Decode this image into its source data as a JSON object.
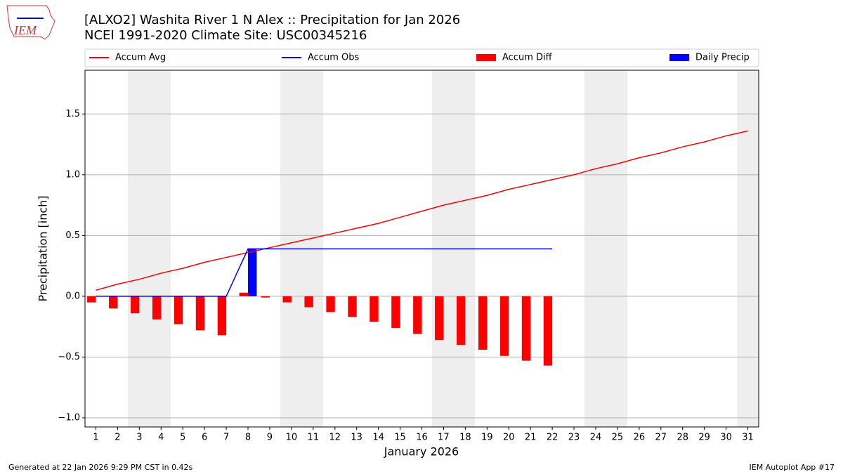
{
  "logo_text": "IEM",
  "footer": {
    "left": "Generated at 22 Jan 2026 9:29 PM CST in 0.42s",
    "right": "IEM Autoplot App #17"
  },
  "chart_data": {
    "type": "line",
    "title": "[ALXO2] Washita River 1 N Alex :: Precipitation for Jan 2026",
    "subtitle": "NCEI 1991-2020 Climate Site: USC00345216",
    "xlabel": "January 2026",
    "ylabel": "Precipitation [inch]",
    "x": [
      1,
      2,
      3,
      4,
      5,
      6,
      7,
      8,
      9,
      10,
      11,
      12,
      13,
      14,
      15,
      16,
      17,
      18,
      19,
      20,
      21,
      22,
      23,
      24,
      25,
      26,
      27,
      28,
      29,
      30,
      31
    ],
    "xlim": [
      0.5,
      31.5
    ],
    "ylim": [
      -1.075,
      1.86
    ],
    "yticks": [
      {
        "value": -1.0,
        "label": "−1.0"
      },
      {
        "value": -0.5,
        "label": "−0.5"
      },
      {
        "value": 0,
        "label": "0.0"
      },
      {
        "value": 0.5,
        "label": "0.5"
      },
      {
        "value": 1.0,
        "label": "1.0"
      },
      {
        "value": 1.5,
        "label": "1.5"
      }
    ],
    "grid": true,
    "legend": "top",
    "series": [
      {
        "name": "Accum Avg",
        "type": "line",
        "color": "#ff0000",
        "values": [
          0.05,
          0.1,
          0.14,
          0.19,
          0.23,
          0.28,
          0.32,
          0.36,
          0.4,
          0.44,
          0.48,
          0.52,
          0.56,
          0.6,
          0.65,
          0.7,
          0.75,
          0.79,
          0.83,
          0.88,
          0.92,
          0.96,
          1.0,
          1.05,
          1.09,
          1.14,
          1.18,
          1.23,
          1.27,
          1.32,
          1.36
        ]
      },
      {
        "name": "Accum Obs",
        "type": "line",
        "color": "#0000ff",
        "values": [
          0,
          0,
          0,
          0,
          0,
          0,
          0,
          0.39,
          0.39,
          0.39,
          0.39,
          0.39,
          0.39,
          0.39,
          0.39,
          0.39,
          0.39,
          0.39,
          0.39,
          0.39,
          0.39,
          0.39,
          null,
          null,
          null,
          null,
          null,
          null,
          null,
          null,
          null
        ]
      },
      {
        "name": "Accum Diff",
        "type": "bar",
        "color": "#ff0000",
        "values": [
          -0.05,
          -0.1,
          -0.14,
          -0.19,
          -0.23,
          -0.28,
          -0.32,
          0.03,
          -0.01,
          -0.05,
          -0.09,
          -0.13,
          -0.17,
          -0.21,
          -0.26,
          -0.31,
          -0.36,
          -0.4,
          -0.44,
          -0.49,
          -0.53,
          -0.57,
          null,
          null,
          null,
          null,
          null,
          null,
          null,
          null,
          null
        ]
      },
      {
        "name": "Daily Precip",
        "type": "bar",
        "color": "#0000ff",
        "values": [
          0,
          0,
          0,
          0,
          0,
          0,
          0,
          0.39,
          0,
          0,
          0,
          0,
          0,
          0,
          0,
          0,
          0,
          0,
          0,
          0,
          0,
          0,
          null,
          null,
          null,
          null,
          null,
          null,
          null,
          null,
          null
        ]
      }
    ]
  }
}
